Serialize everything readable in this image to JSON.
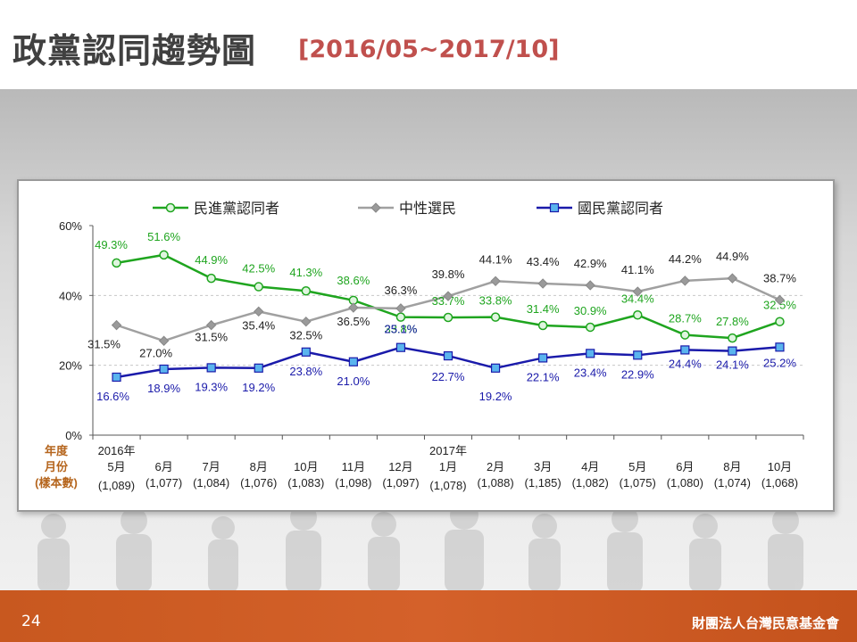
{
  "slide": {
    "title": "政黨認同趨勢圖",
    "subtitle": "[2016/05~2017/10]",
    "page_number": "24",
    "organization": "財團法人台灣民意基金會"
  },
  "colors": {
    "dpp": "#1fa51f",
    "neutral": "#a0a0a0",
    "kmt": "#1a1aaa",
    "axis_header": "#b5651d",
    "footer": "#c8581f",
    "subtitle": "#c0504d"
  },
  "chart_data": {
    "type": "line",
    "title": "",
    "xlabel": "",
    "ylabel": "",
    "ylim": [
      0,
      60
    ],
    "yticks": [
      "0%",
      "20%",
      "40%",
      "60%"
    ],
    "grid": "horizontal dashed at 40%",
    "legend_position": "top",
    "x_header": [
      "年度",
      "月份",
      "(樣本數)"
    ],
    "categories": [
      {
        "year": "2016年",
        "month": "5月",
        "sample": "(1,089)"
      },
      {
        "year": "",
        "month": "6月",
        "sample": "(1,077)"
      },
      {
        "year": "",
        "month": "7月",
        "sample": "(1,084)"
      },
      {
        "year": "",
        "month": "8月",
        "sample": "(1,076)"
      },
      {
        "year": "",
        "month": "10月",
        "sample": "(1,083)"
      },
      {
        "year": "",
        "month": "11月",
        "sample": "(1,098)"
      },
      {
        "year": "",
        "month": "12月",
        "sample": "(1,097)"
      },
      {
        "year": "2017年",
        "month": "1月",
        "sample": "(1,078)"
      },
      {
        "year": "",
        "month": "2月",
        "sample": "(1,088)"
      },
      {
        "year": "",
        "month": "3月",
        "sample": "(1,185)"
      },
      {
        "year": "",
        "month": "4月",
        "sample": "(1,082)"
      },
      {
        "year": "",
        "month": "5月",
        "sample": "(1,075)"
      },
      {
        "year": "",
        "month": "6月",
        "sample": "(1,080)"
      },
      {
        "year": "",
        "month": "8月",
        "sample": "(1,074)"
      },
      {
        "year": "",
        "month": "10月",
        "sample": "(1,068)"
      }
    ],
    "series": [
      {
        "name": "民進黨認同者",
        "key": "dpp",
        "marker": "circle",
        "values": [
          49.3,
          51.6,
          44.9,
          42.5,
          41.3,
          38.6,
          33.8,
          33.7,
          33.8,
          31.4,
          30.9,
          34.4,
          28.7,
          27.8,
          32.5
        ],
        "labels": [
          "49.3%",
          "51.6%",
          "44.9%",
          "42.5%",
          "41.3%",
          "38.6%",
          "33.8%",
          "33.7%",
          "33.8%",
          "31.4%",
          "30.9%",
          "34.4%",
          "28.7%",
          "27.8%",
          "32.5%"
        ]
      },
      {
        "name": "中性選民",
        "key": "neutral",
        "marker": "diamond",
        "values": [
          31.5,
          27.0,
          31.5,
          35.4,
          32.5,
          36.5,
          36.3,
          39.8,
          44.1,
          43.4,
          42.9,
          41.1,
          44.2,
          44.9,
          38.7
        ],
        "labels": [
          "31.5%",
          "27.0%",
          "31.5%",
          "35.4%",
          "32.5%",
          "36.5%",
          "36.3%",
          "39.8%",
          "44.1%",
          "43.4%",
          "42.9%",
          "41.1%",
          "44.2%",
          "44.9%",
          "38.7%"
        ]
      },
      {
        "name": "國民黨認同者",
        "key": "kmt",
        "marker": "square",
        "values": [
          16.6,
          18.9,
          19.3,
          19.2,
          23.8,
          21.0,
          25.1,
          22.7,
          19.2,
          22.1,
          23.4,
          22.9,
          24.4,
          24.1,
          25.2
        ],
        "labels": [
          "16.6%",
          "18.9%",
          "19.3%",
          "19.2%",
          "23.8%",
          "21.0%",
          "25.1%",
          "22.7%",
          "19.2%",
          "22.1%",
          "23.4%",
          "22.9%",
          "24.4%",
          "24.1%",
          "25.2%"
        ]
      }
    ]
  }
}
